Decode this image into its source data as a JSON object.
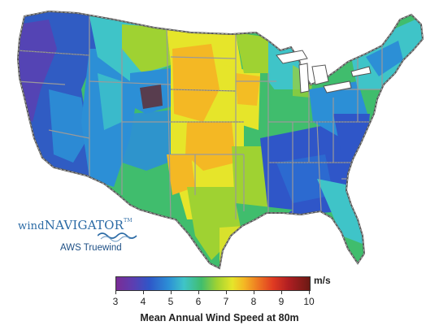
{
  "map": {
    "subject": "Contiguous United States wind resource",
    "color_scale": {
      "min": 3,
      "max": 10,
      "units": "m/s",
      "ticks": [
        "3",
        "4",
        "5",
        "6",
        "7",
        "8",
        "9",
        "10"
      ],
      "colors": [
        "#7a2c96",
        "#2f56c8",
        "#3fc4c8",
        "#40bd6d",
        "#9fd232",
        "#e6e52a",
        "#ee7a22",
        "#e03b22",
        "#6b1a14"
      ]
    },
    "legend_title": "Mean Annual Wind Speed at 80m"
  },
  "logo": {
    "brand_left": "wind",
    "brand_right": "NAVIGATOR",
    "trademark": "TM",
    "company": "AWS Truewind",
    "icon": "wave-logo-icon"
  }
}
